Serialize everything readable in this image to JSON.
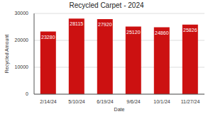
{
  "chart_data": {
    "type": "bar",
    "title": "Recycled Carpet - 2024",
    "x_label": "Date",
    "y_label": "Recycled Amount",
    "categories": [
      "2/14/24",
      "5/10/24",
      "6/19/24",
      "9/6/24",
      "10/1/24",
      "11/27/24"
    ],
    "values": [
      23280,
      28115,
      27920,
      25120,
      24860,
      25826
    ],
    "color": "#cc1111",
    "ylim": [
      0,
      30000
    ],
    "yticks": [
      0,
      10000,
      20000,
      30000
    ],
    "grid": true,
    "data_labels": true
  }
}
